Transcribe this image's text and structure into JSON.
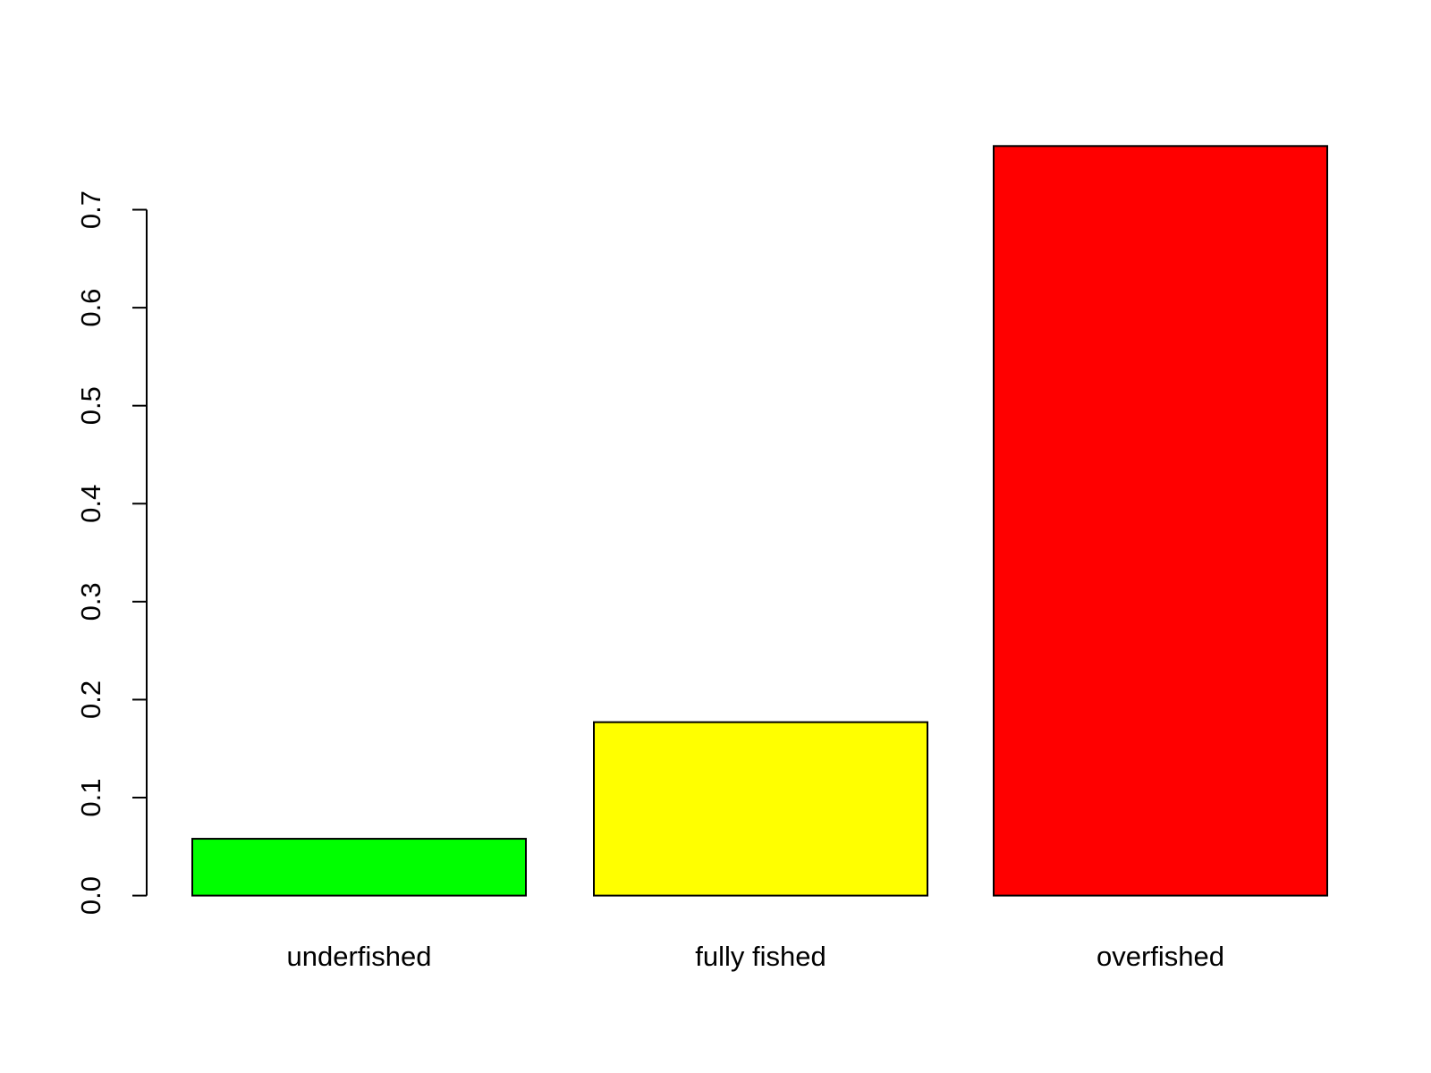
{
  "chart_data": {
    "type": "bar",
    "categories": [
      "underfished",
      "fully fished",
      "overfished"
    ],
    "values": [
      0.058,
      0.177,
      0.765
    ],
    "colors": [
      "#00ff00",
      "#ffff00",
      "#ff0000"
    ],
    "ylim": [
      0,
      0.765
    ],
    "yticks": [
      {
        "value": 0,
        "label": "0.0"
      },
      0.1,
      0.2,
      0.3,
      0.4,
      0.5,
      0.6,
      0.7
    ],
    "grid": false
  }
}
